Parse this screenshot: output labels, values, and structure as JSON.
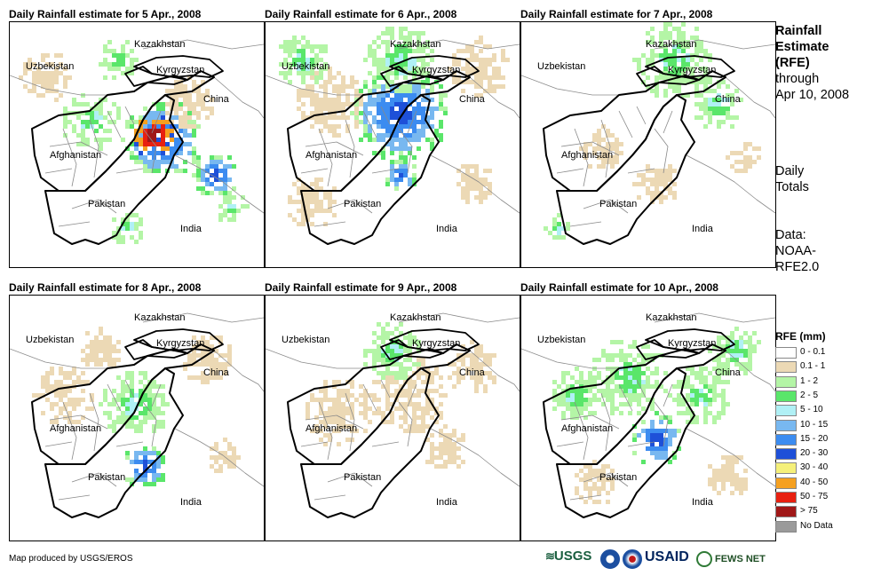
{
  "panels": [
    {
      "title": "Daily Rainfall estimate for 5 Apr., 2008",
      "intensity": "heavy"
    },
    {
      "title": "Daily Rainfall estimate for 6 Apr., 2008",
      "intensity": "moderate"
    },
    {
      "title": "Daily Rainfall estimate for 7 Apr., 2008",
      "intensity": "light"
    },
    {
      "title": "Daily Rainfall estimate for 8 Apr., 2008",
      "intensity": "light"
    },
    {
      "title": "Daily Rainfall estimate for 9 Apr., 2008",
      "intensity": "light"
    },
    {
      "title": "Daily Rainfall estimate for 10 Apr., 2008",
      "intensity": "moderate"
    }
  ],
  "places": {
    "kazakhstan": "Kazakhstan",
    "uzbekistan": "Uzbekistan",
    "kyrgyzstan": "Kyrgyzstan",
    "china": "China",
    "afghanistan": "Afghanistan",
    "pakistan": "Pakistan",
    "india": "India"
  },
  "sidebar": {
    "title_line1": "Rainfall",
    "title_line2": "Estimate",
    "title_line3": "(RFE)",
    "through": "through",
    "date": "Apr 10, 2008",
    "daily1": "Daily",
    "daily2": "Totals",
    "data1": "Data:",
    "data2": "NOAA-",
    "data3": "RFE2.0"
  },
  "legend": {
    "title": "RFE (mm)",
    "items": [
      {
        "label": "0 - 0.1",
        "color": "#ffffff"
      },
      {
        "label": "0.1 - 1",
        "color": "#ecd9b5"
      },
      {
        "label": "1 - 2",
        "color": "#b4f5a6"
      },
      {
        "label": "2 - 5",
        "color": "#5ae66a"
      },
      {
        "label": "5 - 10",
        "color": "#b0f0f5"
      },
      {
        "label": "10 - 15",
        "color": "#78b8f0"
      },
      {
        "label": "15 - 20",
        "color": "#3c8cf0"
      },
      {
        "label": "20 - 30",
        "color": "#1e50d8"
      },
      {
        "label": "30 - 40",
        "color": "#f5f07a"
      },
      {
        "label": "40 - 50",
        "color": "#f5a020"
      },
      {
        "label": "50 - 75",
        "color": "#e82010"
      },
      {
        "label": "> 75",
        "color": "#a01818"
      },
      {
        "label": "No Data",
        "color": "#9a9a9a"
      }
    ]
  },
  "credit": "Map produced by USGS/EROS",
  "logos": {
    "usgs": "USGS",
    "usaid": "USAID",
    "fews": "FEWS NET"
  }
}
